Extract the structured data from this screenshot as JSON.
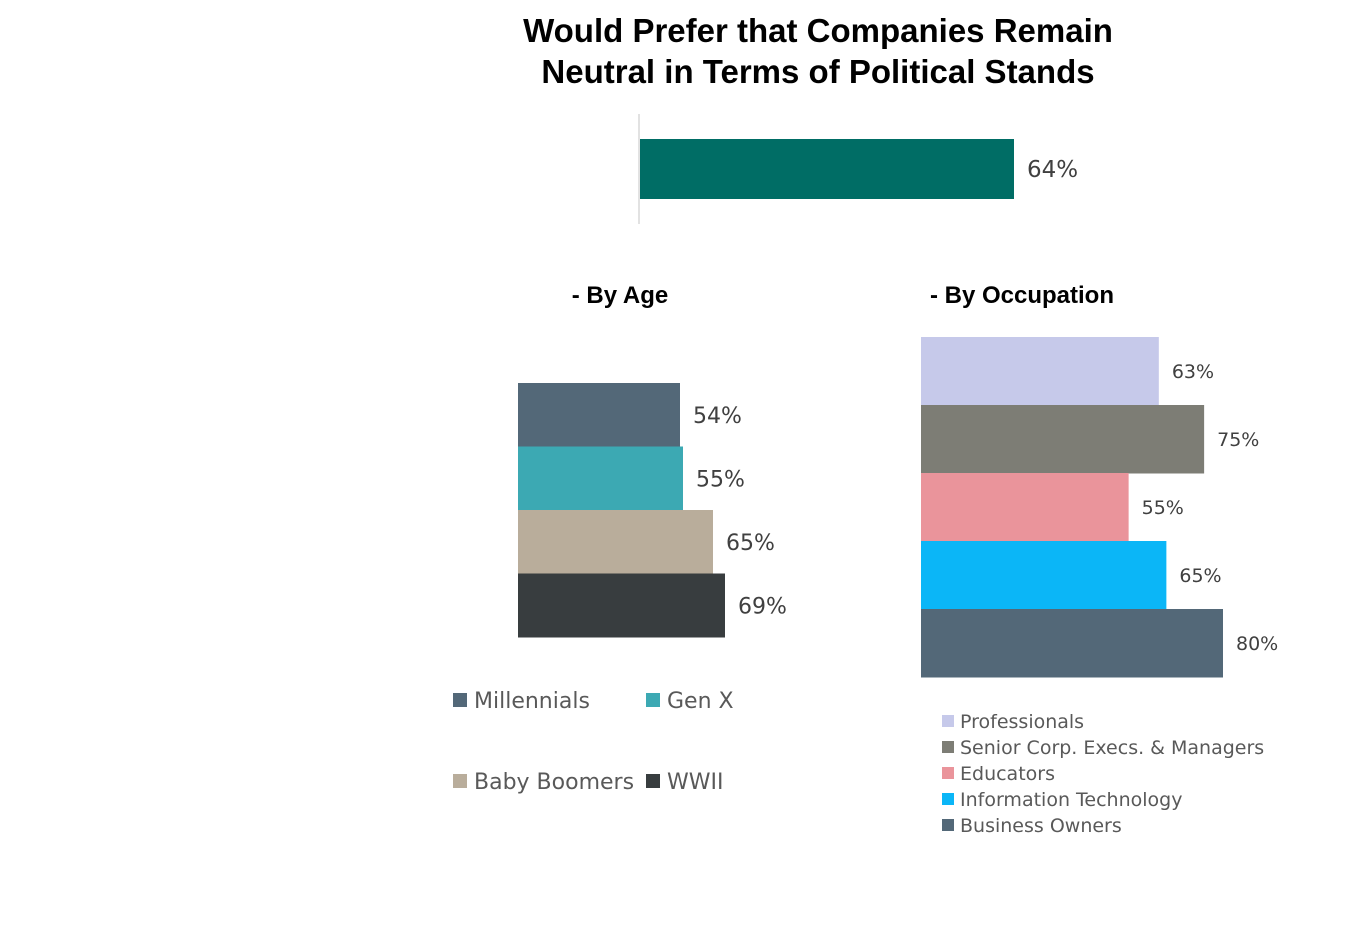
{
  "title_lines": [
    "Would Prefer that Companies Remain",
    "Neutral in Terms of Political Stands"
  ],
  "chart_data": [
    {
      "type": "bar",
      "orientation": "horizontal",
      "title": "Would Prefer that Companies Remain Neutral in Terms of Political Stands",
      "categories": [
        ""
      ],
      "values": [
        64
      ],
      "labels": [
        "64%"
      ],
      "unit": "%",
      "color": "#006d65",
      "xlim": [
        0,
        100
      ]
    },
    {
      "type": "bar",
      "orientation": "horizontal",
      "title": "- By Age",
      "series": [
        {
          "name": "Millennials",
          "value": 54,
          "label": "54%",
          "color": "#536878"
        },
        {
          "name": "Gen X",
          "value": 55,
          "label": "55%",
          "color": "#3ca9b3"
        },
        {
          "name": "Baby Boomers",
          "value": 65,
          "label": "65%",
          "color": "#b9ad9b"
        },
        {
          "name": "WWII",
          "value": 69,
          "label": "69%",
          "color": "#383d3f"
        }
      ],
      "unit": "%",
      "legend_position": "bottom",
      "xlim": [
        0,
        100
      ]
    },
    {
      "type": "bar",
      "orientation": "horizontal",
      "title": "- By Occupation",
      "series": [
        {
          "name": "Professionals",
          "value": 63,
          "label": "63%",
          "color": "#c6c9ea"
        },
        {
          "name": "Senior Corp. Execs. & Managers",
          "value": 75,
          "label": "75%",
          "color": "#7d7d75"
        },
        {
          "name": "Educators",
          "value": 55,
          "label": "55%",
          "color": "#ea949b"
        },
        {
          "name": "Information Technology",
          "value": 65,
          "label": "65%",
          "color": "#0bb6f7"
        },
        {
          "name": "Business Owners",
          "value": 80,
          "label": "80%",
          "color": "#536878"
        }
      ],
      "unit": "%",
      "legend_position": "bottom",
      "xlim": [
        0,
        100
      ]
    }
  ]
}
